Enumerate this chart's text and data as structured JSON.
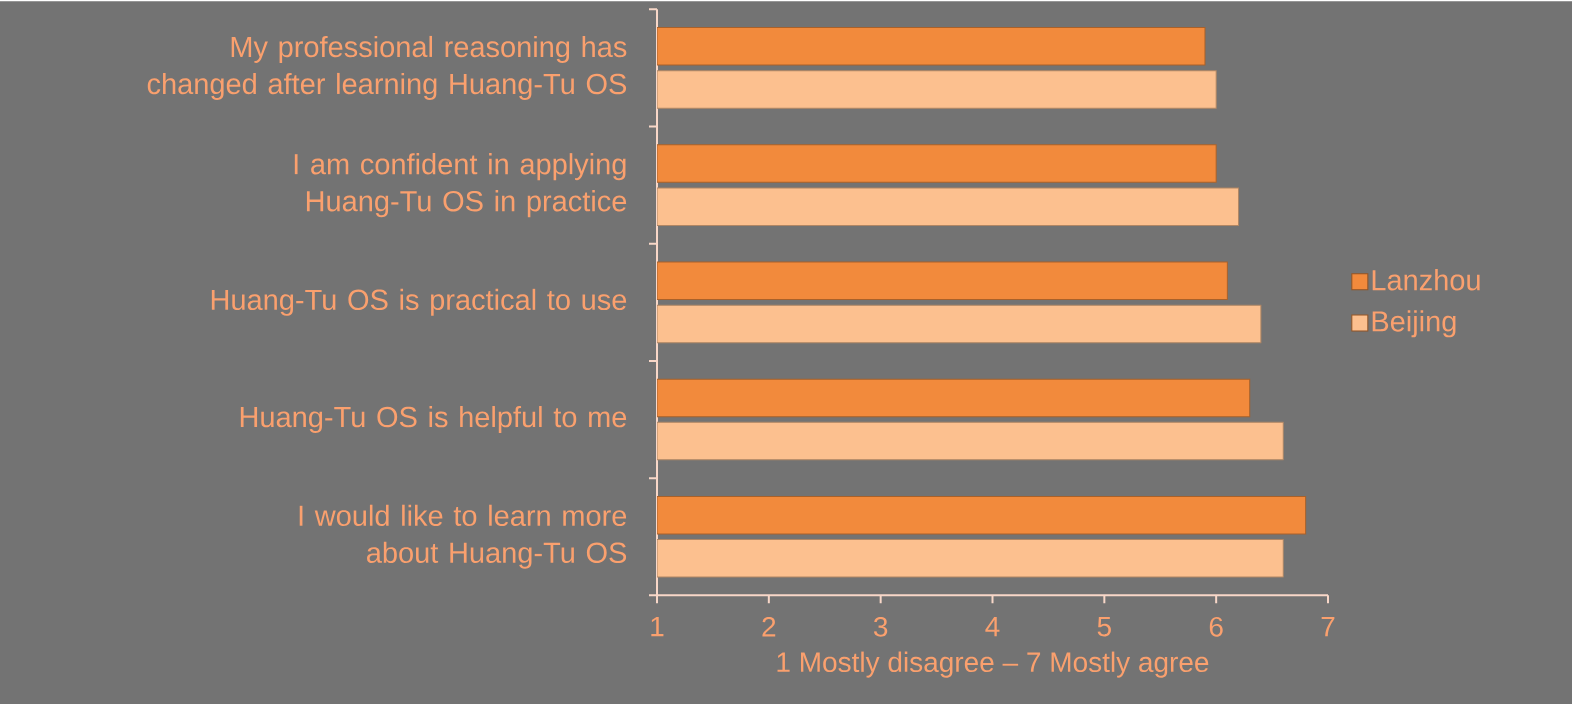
{
  "chart_data": {
    "type": "bar",
    "orientation": "horizontal",
    "xlabel": "1 Mostly disagree – 7 Mostly agree",
    "categories": [
      "My professional reasoning has changed after learning Huang-Tu OS",
      "I am confident in applying Huang-Tu OS in practice",
      "Huang-Tu OS is practical to use",
      "Huang-Tu OS is helpful to me",
      "I would like to learn more about Huang-Tu OS"
    ],
    "series": [
      {
        "name": "Lanzhou",
        "color": "#f28a3c",
        "values": [
          5.9,
          6.0,
          6.1,
          6.3,
          6.8
        ]
      },
      {
        "name": "Beijing",
        "color": "#fcc08f",
        "values": [
          6.0,
          6.2,
          6.4,
          6.6,
          6.6
        ]
      }
    ],
    "xlim": [
      1,
      7
    ],
    "xticks": [
      1,
      2,
      3,
      4,
      5,
      6,
      7
    ],
    "legend": "right",
    "grid": false
  }
}
